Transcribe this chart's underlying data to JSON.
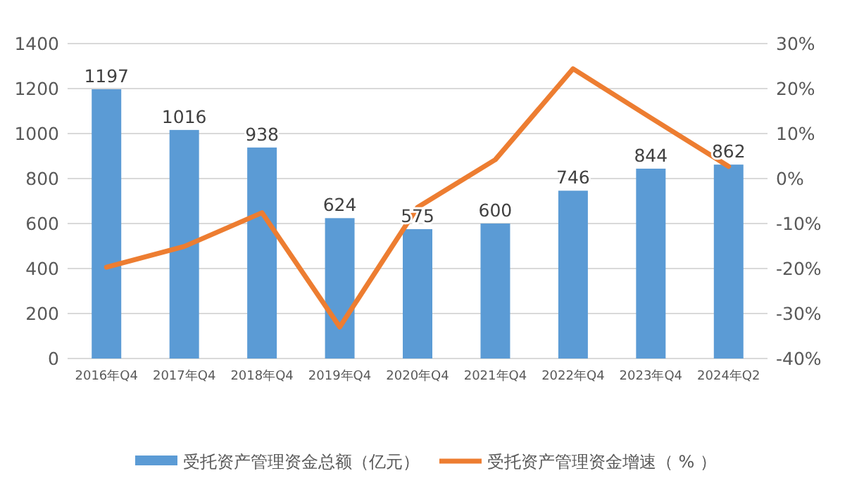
{
  "chart_data": {
    "type": "bar",
    "categories": [
      "2016年Q4",
      "2017年Q4",
      "2018年Q4",
      "2019年Q4",
      "2020年Q4",
      "2021年Q4",
      "2022年Q4",
      "2023年Q4",
      "2024年Q2"
    ],
    "series": [
      {
        "name": "受托资产管理资金总额（亿元）",
        "color": "#5b9bd5",
        "values": [
          1197,
          1016,
          938,
          624,
          575,
          600,
          746,
          844,
          862
        ],
        "value_labels": [
          "1197",
          "1016",
          "938",
          "624",
          "575",
          "600",
          "746",
          "844",
          "862"
        ]
      },
      {
        "name": "受托资产管理资金增速（ %  ）",
        "type": "line",
        "axis": "y2",
        "color": "#ed7d31",
        "values": [
          -19.7,
          -15.1,
          -7.6,
          -33.0,
          -6.4,
          4.2,
          24.4,
          13.5,
          2.7
        ]
      }
    ],
    "ylim": [
      0,
      1400
    ],
    "yticks": [
      0,
      200,
      400,
      600,
      800,
      1000,
      1200,
      1400
    ],
    "y2lim": [
      -40,
      30
    ],
    "y2ticks": [
      {
        "value": -40,
        "label": "-40%"
      },
      {
        "value": -30,
        "label": "-30%"
      },
      {
        "value": -20,
        "label": "-20%"
      },
      {
        "value": -10,
        "label": "-10%"
      },
      {
        "value": 0,
        "label": "0%"
      },
      {
        "value": 10,
        "label": "10%"
      },
      {
        "value": 20,
        "label": "20%"
      },
      {
        "value": 30,
        "label": "30%"
      }
    ],
    "grid": "y",
    "legend": "bottom",
    "marker": "none",
    "line_style": "solid"
  }
}
